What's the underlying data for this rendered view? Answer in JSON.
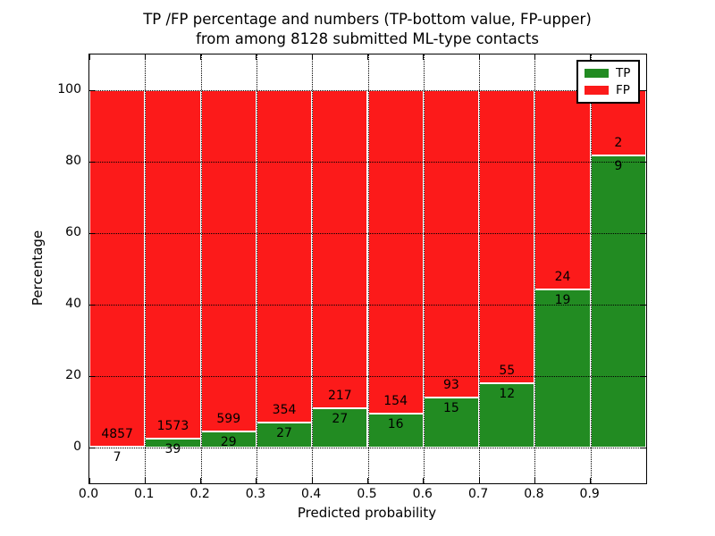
{
  "figure": {
    "title_line1": "TP /FP percentage and numbers (TP-bottom value, FP-upper)",
    "title_line2": "from among 8128 submitted ML-type contacts"
  },
  "chart_data": {
    "type": "bar",
    "stacked": true,
    "title": "TP /FP percentage and numbers (TP-bottom value, FP-upper)\nfrom among 8128 submitted ML-type contacts",
    "xlabel": "Predicted probability",
    "ylabel": "Percentage",
    "xlim": [
      0.0,
      1.0
    ],
    "ylim": [
      -10,
      110
    ],
    "x_ticks": [
      "0.0",
      "0.1",
      "0.2",
      "0.3",
      "0.4",
      "0.5",
      "0.6",
      "0.7",
      "0.8",
      "0.9"
    ],
    "y_ticks": [
      "0",
      "20",
      "40",
      "60",
      "80",
      "100"
    ],
    "grid": "dotted",
    "bin_edges": [
      0.0,
      0.1,
      0.2,
      0.3,
      0.4,
      0.5,
      0.6,
      0.7,
      0.8,
      0.9,
      1.0
    ],
    "series": [
      {
        "name": "TP",
        "color": "#228b22",
        "counts": [
          7,
          39,
          29,
          27,
          27,
          16,
          15,
          12,
          19,
          9
        ]
      },
      {
        "name": "FP",
        "color": "#fc1a1a",
        "counts": [
          4857,
          1573,
          599,
          354,
          217,
          154,
          93,
          55,
          24,
          2
        ]
      }
    ],
    "legend": {
      "position": "upper-right",
      "entries": [
        {
          "label": "TP",
          "color": "#228b22"
        },
        {
          "label": "FP",
          "color": "#fc1a1a"
        }
      ]
    },
    "total_contacts": 8128
  }
}
